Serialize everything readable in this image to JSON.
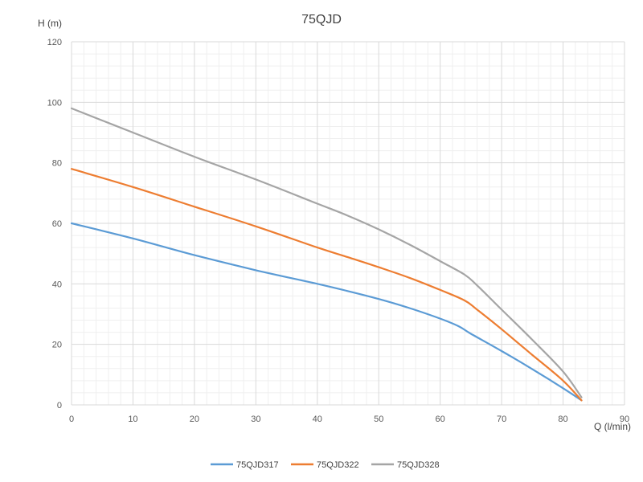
{
  "chart_data": {
    "type": "line",
    "title": "75QJD",
    "xlabel": "Q (l/min)",
    "ylabel": "H (m)",
    "xlim": [
      0,
      90
    ],
    "ylim": [
      0,
      120
    ],
    "xticks": [
      0,
      10,
      20,
      30,
      40,
      50,
      60,
      70,
      80,
      90
    ],
    "yticks": [
      0,
      20,
      40,
      60,
      80,
      100,
      120
    ],
    "grid": true,
    "legend_position": "bottom",
    "series": [
      {
        "name": "75QJD317",
        "color": "#5b9bd5",
        "x": [
          0,
          10,
          20,
          30,
          40,
          45,
          50,
          55,
          60,
          63,
          65,
          70,
          75,
          80,
          83
        ],
        "y": [
          60,
          55,
          49.5,
          44.5,
          40,
          37.6,
          35,
          32,
          28.5,
          26,
          23.5,
          17.8,
          11.8,
          5.5,
          1.5
        ]
      },
      {
        "name": "75QJD322",
        "color": "#ed7d31",
        "x": [
          0,
          10,
          20,
          30,
          40,
          45,
          50,
          55,
          60,
          64,
          66,
          70,
          75,
          80,
          83
        ],
        "y": [
          78,
          72,
          65.5,
          59,
          52,
          48.8,
          45.5,
          42,
          38,
          34.5,
          31.5,
          25,
          16.5,
          8,
          1.5
        ]
      },
      {
        "name": "75QJD328",
        "color": "#a5a5a5",
        "x": [
          0,
          10,
          20,
          30,
          40,
          45,
          50,
          55,
          60,
          64,
          66,
          70,
          75,
          80,
          83
        ],
        "y": [
          98,
          90,
          82,
          74.5,
          66.5,
          62.5,
          58,
          53,
          47.5,
          43,
          39.5,
          31.5,
          21.5,
          11,
          2.5
        ]
      }
    ]
  }
}
